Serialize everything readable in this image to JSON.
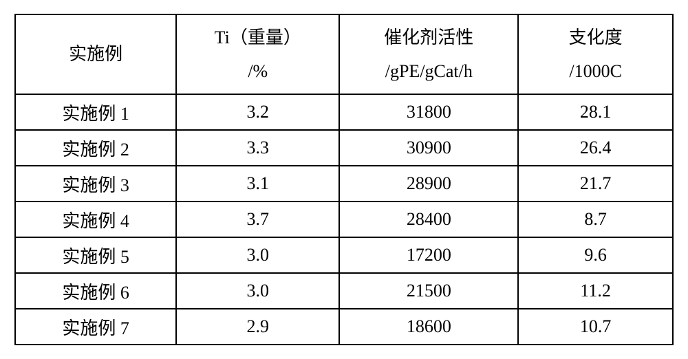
{
  "table": {
    "columns": [
      {
        "line1": "实施例",
        "line2": ""
      },
      {
        "line1": "Ti（重量）",
        "line2": "/%"
      },
      {
        "line1": "催化剂活性",
        "line2": "/gPE/gCat/h"
      },
      {
        "line1": "支化度",
        "line2": "/1000C"
      }
    ],
    "rows": [
      [
        "实施例 1",
        "3.2",
        "31800",
        "28.1"
      ],
      [
        "实施例 2",
        "3.3",
        "30900",
        "26.4"
      ],
      [
        "实施例 3",
        "3.1",
        "28900",
        "21.7"
      ],
      [
        "实施例 4",
        "3.7",
        "28400",
        "8.7"
      ],
      [
        "实施例 5",
        "3.0",
        "17200",
        "9.6"
      ],
      [
        "实施例 6",
        "3.0",
        "21500",
        "11.2"
      ],
      [
        "实施例 7",
        "2.9",
        "18600",
        "10.7"
      ]
    ],
    "border_color": "#000000",
    "background_color": "#ffffff",
    "text_color": "#000000",
    "font_size": 26
  }
}
